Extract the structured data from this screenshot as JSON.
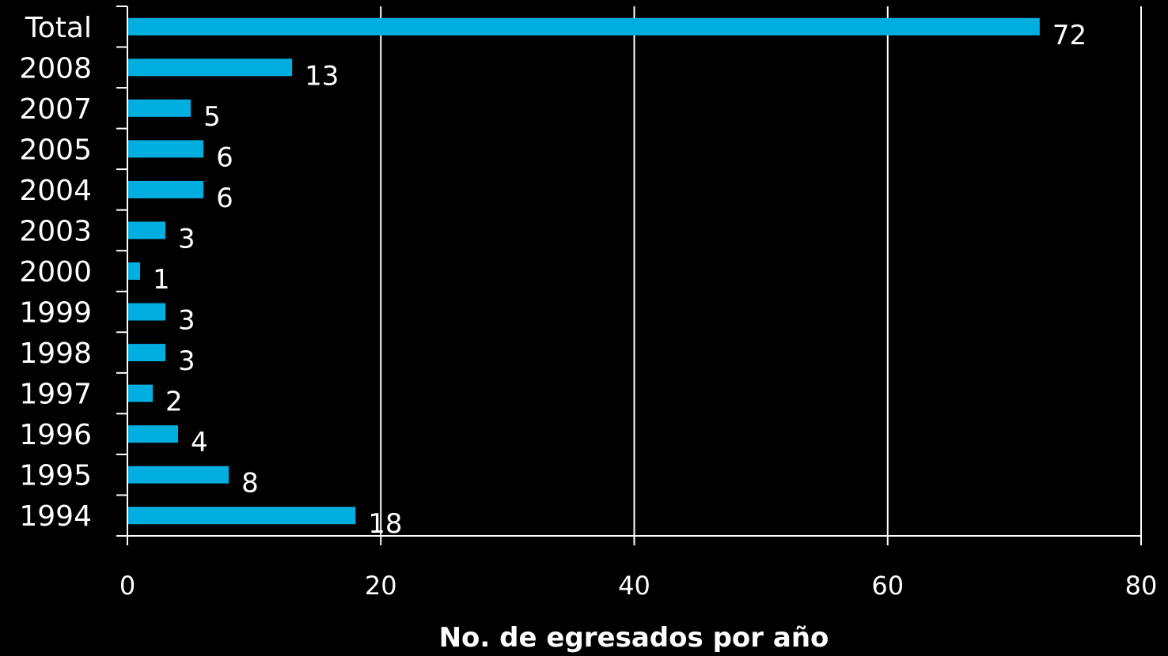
{
  "chart_data": {
    "type": "bar",
    "orientation": "horizontal",
    "categories": [
      "Total",
      "2008",
      "2007",
      "2005",
      "2004",
      "2003",
      "2000",
      "1999",
      "1998",
      "1997",
      "1996",
      "1995",
      "1994"
    ],
    "values": [
      72,
      13,
      5,
      6,
      6,
      3,
      1,
      3,
      3,
      2,
      4,
      8,
      18
    ],
    "xlabel": "No. de egresados por año",
    "ylabel": "",
    "xlim": [
      0,
      80
    ],
    "xticks": [
      0,
      20,
      40,
      60,
      80
    ],
    "grid": true,
    "data_labels": true,
    "colors": {
      "background": "#000000",
      "bar": "#00aee0",
      "text": "#ffffff",
      "grid": "#ffffff"
    }
  }
}
